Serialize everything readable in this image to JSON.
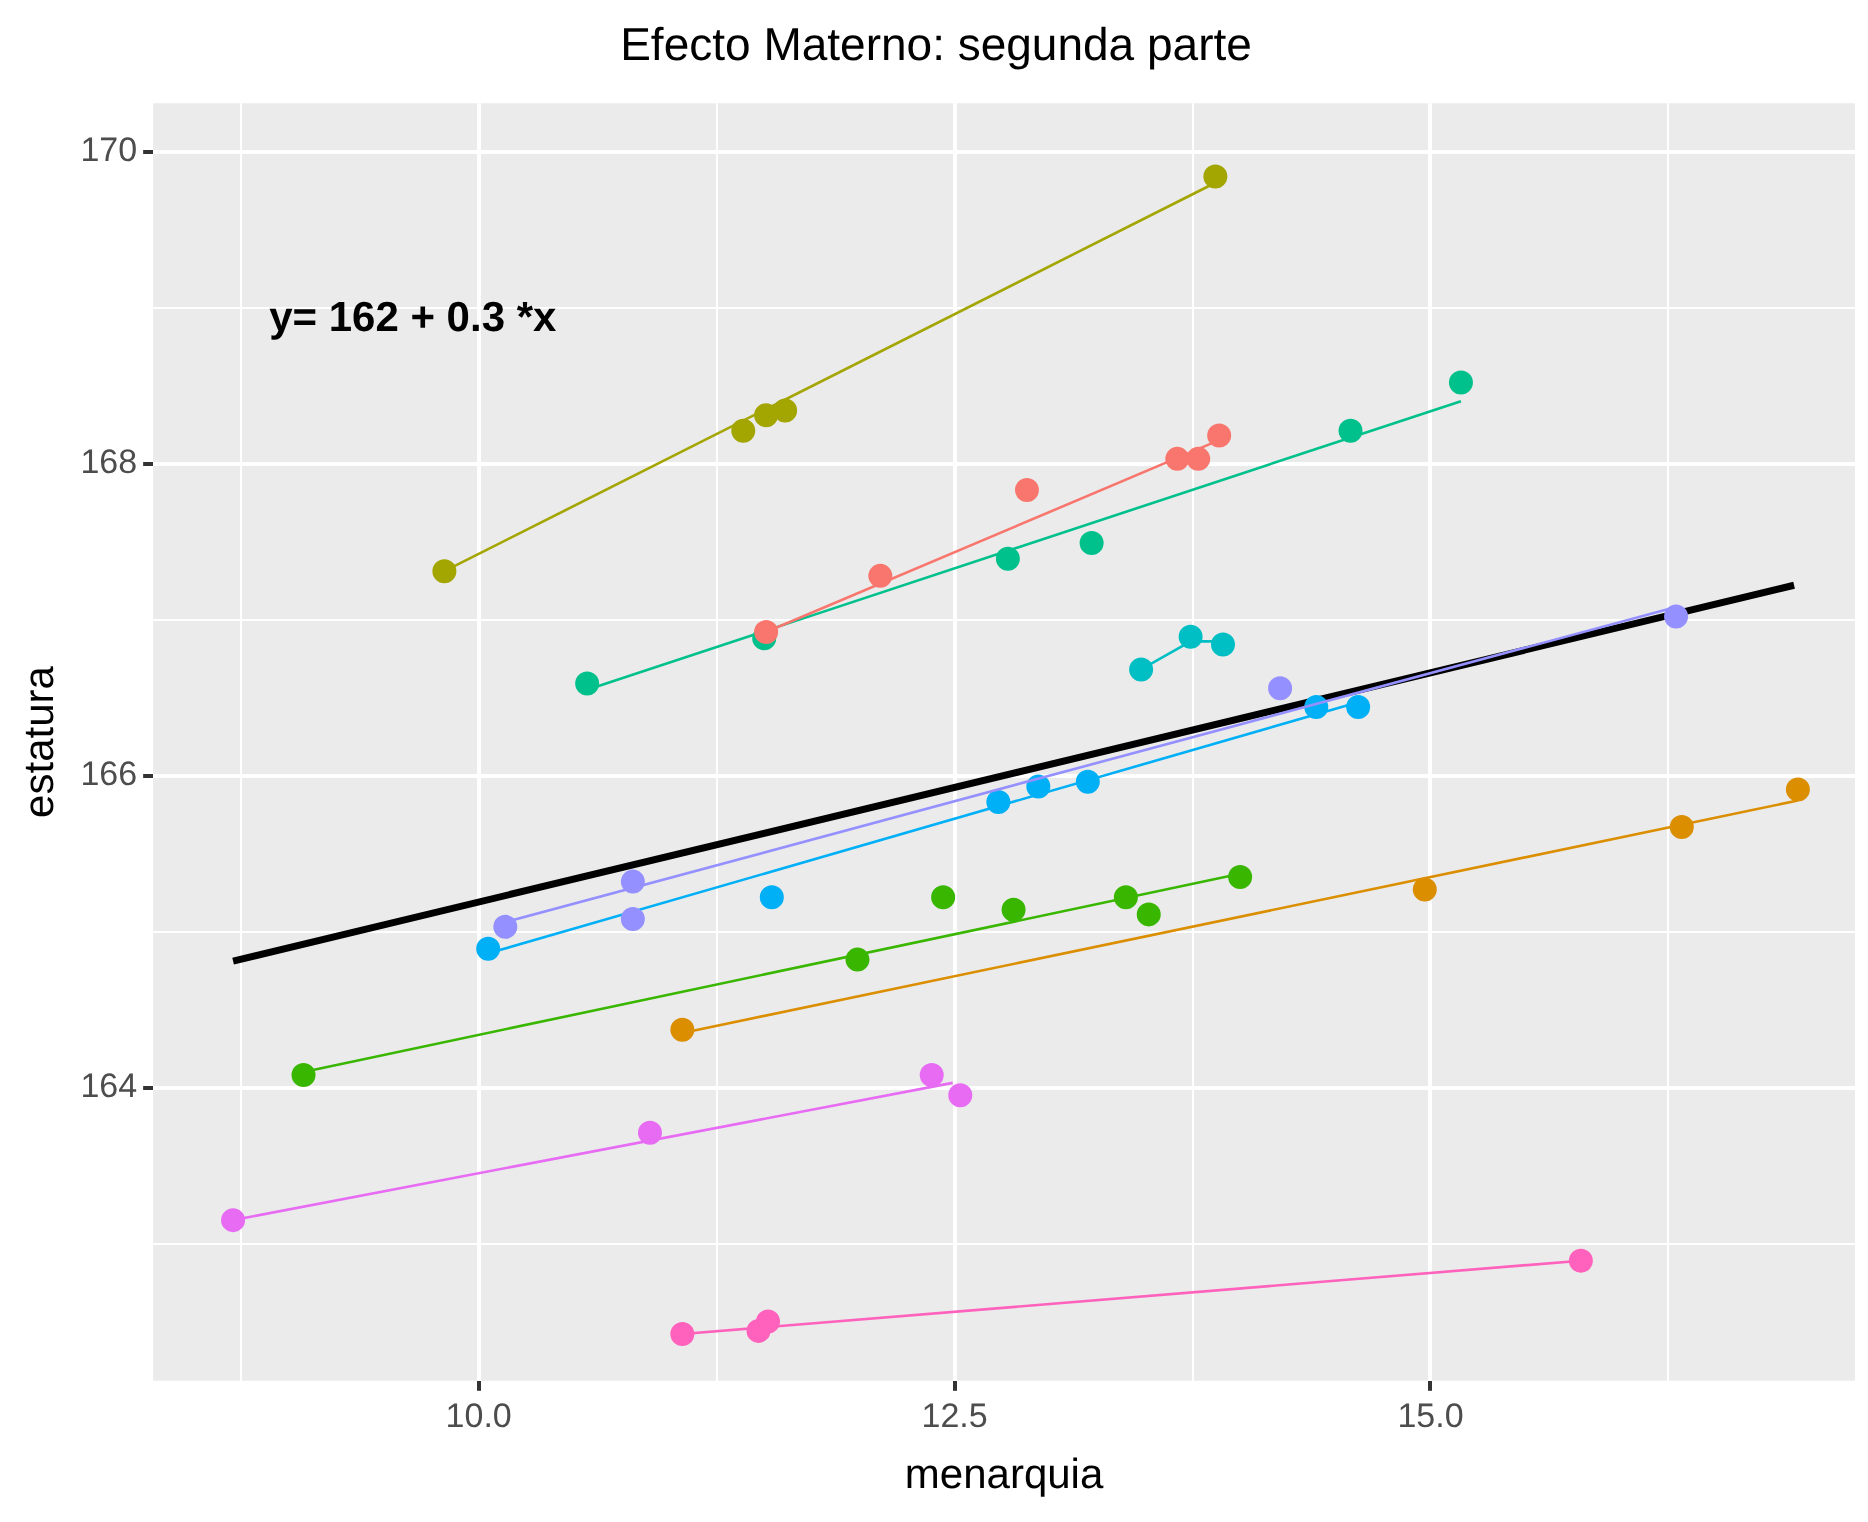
{
  "chart_data": {
    "type": "scatter",
    "title": "Efecto Materno: segunda parte",
    "xlabel": "menarquia",
    "ylabel": "estatura",
    "annotations": [
      "y= 162 + 0.3 *x"
    ],
    "grid": true,
    "legend": false,
    "xlim": [
      8.29,
      17.23
    ],
    "ylim": [
      162.12,
      170.31
    ],
    "xticks": [
      {
        "value": 8.75,
        "label": null
      },
      {
        "value": 10,
        "label": "10.0"
      },
      {
        "value": 11.25,
        "label": null
      },
      12.5,
      {
        "value": 13.75,
        "label": null
      },
      {
        "value": 15,
        "label": "15.0"
      },
      {
        "value": 16.25,
        "label": null
      }
    ],
    "yticks": [
      {
        "value": 163,
        "label": null
      },
      164,
      {
        "value": 165,
        "label": null
      },
      166,
      {
        "value": 167,
        "label": null
      },
      168,
      {
        "value": 169,
        "label": null
      },
      170
    ],
    "series": [
      {
        "type": "line",
        "marker": "none",
        "color": "#a3a500",
        "x": [
          9.82,
          13.87
        ],
        "values": [
          167.31,
          169.8
        ]
      },
      {
        "type": "scatter",
        "marker": "circle",
        "color": "#a3a500",
        "x": [
          9.82,
          11.39,
          11.51,
          11.61,
          13.87
        ],
        "values": [
          167.31,
          168.21,
          168.31,
          168.34,
          169.84
        ]
      },
      {
        "type": "line",
        "marker": "none",
        "color": "#f8766d",
        "x": [
          11.51,
          13.89
        ],
        "values": [
          166.92,
          168.15
        ]
      },
      {
        "type": "scatter",
        "marker": "circle",
        "color": "#f8766d",
        "x": [
          11.51,
          12.11,
          12.88,
          13.67,
          13.78,
          13.89
        ],
        "values": [
          166.92,
          167.28,
          167.83,
          168.03,
          168.03,
          168.18
        ]
      },
      {
        "type": "line",
        "marker": "none",
        "color": "#00c08b",
        "x": [
          10.57,
          15.16
        ],
        "values": [
          166.55,
          168.4
        ]
      },
      {
        "type": "scatter",
        "marker": "circle",
        "color": "#00c08b",
        "x": [
          10.57,
          11.5,
          12.78,
          13.22,
          14.58,
          15.16
        ],
        "values": [
          166.59,
          166.88,
          167.39,
          167.49,
          168.21,
          168.52
        ]
      },
      {
        "type": "line",
        "marker": "none",
        "color": "#00bfc4",
        "x": [
          13.48,
          13.74,
          13.91
        ],
        "values": [
          166.68,
          166.86,
          166.86
        ]
      },
      {
        "type": "scatter",
        "marker": "circle",
        "color": "#00bfc4",
        "x": [
          13.48,
          13.74,
          13.91
        ],
        "values": [
          166.68,
          166.89,
          166.84
        ]
      },
      {
        "type": "line",
        "marker": "none",
        "color": "#9590ff",
        "x": [
          10.14,
          16.29
        ],
        "values": [
          165.06,
          167.08
        ]
      },
      {
        "type": "scatter",
        "marker": "circle",
        "color": "#9590ff",
        "x": [
          10.14,
          10.81,
          10.81,
          14.21,
          16.29
        ],
        "values": [
          165.03,
          165.32,
          165.08,
          166.56,
          167.02
        ]
      },
      {
        "type": "line",
        "marker": "none",
        "color": "#00b0f6",
        "x": [
          10.05,
          14.62
        ],
        "values": [
          164.86,
          166.47
        ]
      },
      {
        "type": "scatter",
        "marker": "circle",
        "color": "#00b0f6",
        "x": [
          10.05,
          11.54,
          12.73,
          12.94,
          13.2,
          14.4,
          14.62
        ],
        "values": [
          164.89,
          165.22,
          165.83,
          165.93,
          165.96,
          166.44,
          166.44
        ]
      },
      {
        "type": "line",
        "marker": "none",
        "color": "#39b600",
        "x": [
          9.08,
          14.0
        ],
        "values": [
          164.1,
          165.37
        ]
      },
      {
        "type": "scatter",
        "marker": "circle",
        "color": "#39b600",
        "x": [
          9.08,
          11.99,
          12.44,
          12.81,
          13.4,
          13.52,
          14.0
        ],
        "values": [
          164.08,
          164.82,
          165.22,
          165.14,
          165.22,
          165.11,
          165.35
        ]
      },
      {
        "type": "line",
        "marker": "none",
        "color": "#db8e00",
        "x": [
          11.07,
          16.93
        ],
        "values": [
          164.35,
          165.84
        ]
      },
      {
        "type": "scatter",
        "marker": "circle",
        "color": "#db8e00",
        "x": [
          11.07,
          14.97,
          16.32,
          16.93
        ],
        "values": [
          164.37,
          165.27,
          165.67,
          165.91
        ]
      },
      {
        "type": "line",
        "marker": "none",
        "color": "#e76bf3",
        "x": [
          8.71,
          12.49
        ],
        "values": [
          163.15,
          164.03
        ]
      },
      {
        "type": "scatter",
        "marker": "circle",
        "color": "#e76bf3",
        "x": [
          8.71,
          10.9,
          12.38,
          12.53
        ],
        "values": [
          163.15,
          163.71,
          164.08,
          163.95
        ]
      },
      {
        "type": "line",
        "marker": "none",
        "color": "#ff62bc",
        "x": [
          11.07,
          15.79
        ],
        "values": [
          162.42,
          162.89
        ]
      },
      {
        "type": "scatter",
        "marker": "circle",
        "color": "#ff62bc",
        "x": [
          11.07,
          11.47,
          11.52,
          15.79
        ],
        "values": [
          162.42,
          162.44,
          162.5,
          162.89
        ]
      },
      {
        "type": "line",
        "marker": "none",
        "color": "#000000",
        "x": [
          8.71,
          16.91
        ],
        "values": [
          164.81,
          167.22
        ]
      }
    ]
  }
}
